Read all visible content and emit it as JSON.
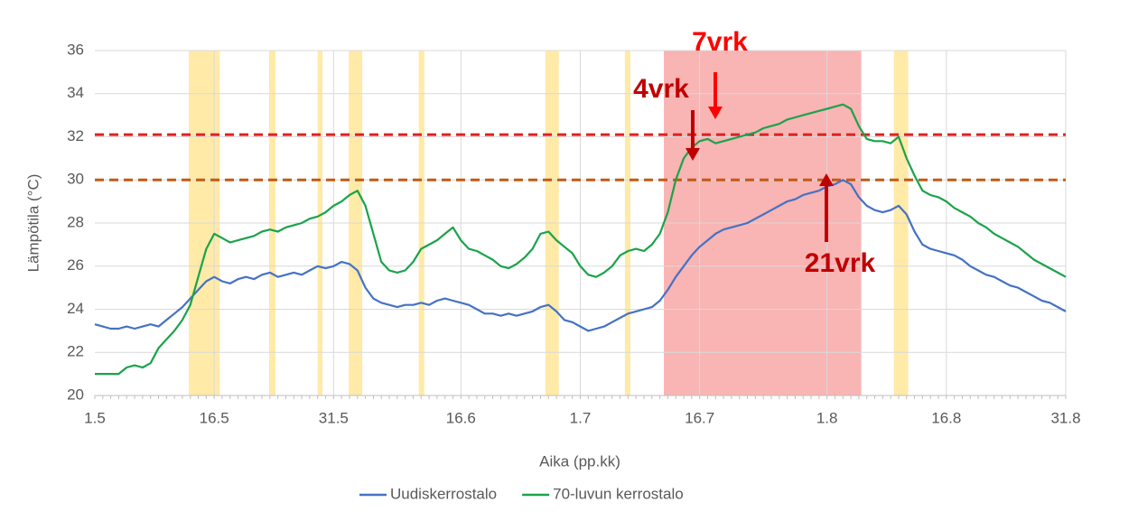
{
  "chart_data": {
    "type": "line",
    "y_label": "Lämpötila (°C)",
    "x_label": "Aika (pp.kk)",
    "categories": [
      "1.5",
      null,
      null,
      null,
      null,
      null,
      null,
      null,
      null,
      null,
      null,
      null,
      null,
      null,
      null,
      "16.5",
      null,
      null,
      null,
      null,
      null,
      null,
      null,
      null,
      null,
      null,
      null,
      null,
      null,
      null,
      "31.5",
      null,
      null,
      null,
      null,
      null,
      null,
      null,
      null,
      null,
      null,
      null,
      null,
      null,
      null,
      null,
      "16.6",
      null,
      null,
      null,
      null,
      null,
      null,
      null,
      null,
      null,
      null,
      null,
      null,
      null,
      null,
      "1.7",
      null,
      null,
      null,
      null,
      null,
      null,
      null,
      null,
      null,
      null,
      null,
      null,
      null,
      null,
      "16.7",
      null,
      null,
      null,
      null,
      null,
      null,
      null,
      null,
      null,
      null,
      null,
      null,
      null,
      null,
      null,
      "1.8",
      null,
      null,
      null,
      null,
      null,
      null,
      null,
      null,
      null,
      null,
      null,
      null,
      null,
      null,
      "16.8",
      null,
      null,
      null,
      null,
      null,
      null,
      null,
      null,
      null,
      null,
      null,
      null,
      null,
      null,
      "31.8"
    ],
    "series": [
      {
        "name": "Uudiskerrostalo",
        "color": "#4472c4",
        "values": [
          23.3,
          23.2,
          23.1,
          23.1,
          23.2,
          23.1,
          23.2,
          23.3,
          23.2,
          23.5,
          23.8,
          24.1,
          24.5,
          24.9,
          25.3,
          25.5,
          25.3,
          25.2,
          25.4,
          25.5,
          25.4,
          25.6,
          25.7,
          25.5,
          25.6,
          25.7,
          25.6,
          25.8,
          26.0,
          25.9,
          26.0,
          26.2,
          26.1,
          25.8,
          25.0,
          24.5,
          24.3,
          24.2,
          24.1,
          24.2,
          24.2,
          24.3,
          24.2,
          24.4,
          24.5,
          24.4,
          24.3,
          24.2,
          24.0,
          23.8,
          23.8,
          23.7,
          23.8,
          23.7,
          23.8,
          23.9,
          24.1,
          24.2,
          23.9,
          23.5,
          23.4,
          23.2,
          23.0,
          23.1,
          23.2,
          23.4,
          23.6,
          23.8,
          23.9,
          24.0,
          24.1,
          24.4,
          24.9,
          25.5,
          26.0,
          26.5,
          26.9,
          27.2,
          27.5,
          27.7,
          27.8,
          27.9,
          28.0,
          28.2,
          28.4,
          28.6,
          28.8,
          29.0,
          29.1,
          29.3,
          29.4,
          29.5,
          29.7,
          29.8,
          30.0,
          29.8,
          29.2,
          28.8,
          28.6,
          28.5,
          28.6,
          28.8,
          28.4,
          27.6,
          27.0,
          26.8,
          26.7,
          26.6,
          26.5,
          26.3,
          26.0,
          25.8,
          25.6,
          25.5,
          25.3,
          25.1,
          25.0,
          24.8,
          24.6,
          24.4,
          24.3,
          24.1,
          23.9
        ]
      },
      {
        "name": "70-luvun kerrostalo",
        "color": "#1aa34a",
        "values": [
          21.0,
          21.0,
          21.0,
          21.0,
          21.3,
          21.4,
          21.3,
          21.5,
          22.2,
          22.6,
          23.0,
          23.5,
          24.2,
          25.5,
          26.8,
          27.5,
          27.3,
          27.1,
          27.2,
          27.3,
          27.4,
          27.6,
          27.7,
          27.6,
          27.8,
          27.9,
          28.0,
          28.2,
          28.3,
          28.5,
          28.8,
          29.0,
          29.3,
          29.5,
          28.8,
          27.5,
          26.2,
          25.8,
          25.7,
          25.8,
          26.2,
          26.8,
          27.0,
          27.2,
          27.5,
          27.8,
          27.2,
          26.8,
          26.7,
          26.5,
          26.3,
          26.0,
          25.9,
          26.1,
          26.4,
          26.8,
          27.5,
          27.6,
          27.2,
          26.9,
          26.6,
          26.0,
          25.6,
          25.5,
          25.7,
          26.0,
          26.5,
          26.7,
          26.8,
          26.7,
          27.0,
          27.5,
          28.5,
          30.0,
          31.0,
          31.5,
          31.8,
          31.9,
          31.7,
          31.8,
          31.9,
          32.0,
          32.1,
          32.2,
          32.4,
          32.5,
          32.6,
          32.8,
          32.9,
          33.0,
          33.1,
          33.2,
          33.3,
          33.4,
          33.5,
          33.3,
          32.5,
          31.9,
          31.8,
          31.8,
          31.7,
          32.0,
          31.0,
          30.2,
          29.5,
          29.3,
          29.2,
          29.0,
          28.7,
          28.5,
          28.3,
          28.0,
          27.8,
          27.5,
          27.3,
          27.1,
          26.9,
          26.6,
          26.3,
          26.1,
          25.9,
          25.7,
          25.5
        ]
      }
    ],
    "ylim": [
      20,
      36
    ],
    "yticks": [
      20,
      22,
      24,
      26,
      28,
      30,
      32,
      34,
      36
    ],
    "grid": true,
    "legend": "bottom",
    "highlight_ranges": [
      {
        "from": 11.8,
        "to": 15.7,
        "color": "#ffe699"
      },
      {
        "from": 21.9,
        "to": 22.7,
        "color": "#ffe699"
      },
      {
        "from": 28.0,
        "to": 28.6,
        "color": "#ffe699"
      },
      {
        "from": 31.9,
        "to": 33.6,
        "color": "#ffe699"
      },
      {
        "from": 40.7,
        "to": 41.4,
        "color": "#ffe699"
      },
      {
        "from": 56.6,
        "to": 58.3,
        "color": "#ffe699"
      },
      {
        "from": 66.6,
        "to": 67.3,
        "color": "#ffe699"
      },
      {
        "from": 100.4,
        "to": 102.2,
        "color": "#ffe699"
      },
      {
        "from": 71.5,
        "to": 96.3,
        "color": "#f8a7a7"
      }
    ],
    "reference_lines": [
      {
        "value": 32.1,
        "color": "#e02020"
      },
      {
        "value": 30.0,
        "color": "#c55a11"
      }
    ],
    "annotations": [
      {
        "text": "4vrk",
        "color": "#c00000"
      },
      {
        "text": "7vrk",
        "color": "#ff0000"
      },
      {
        "text": "21vrk",
        "color": "#c00000"
      }
    ]
  }
}
